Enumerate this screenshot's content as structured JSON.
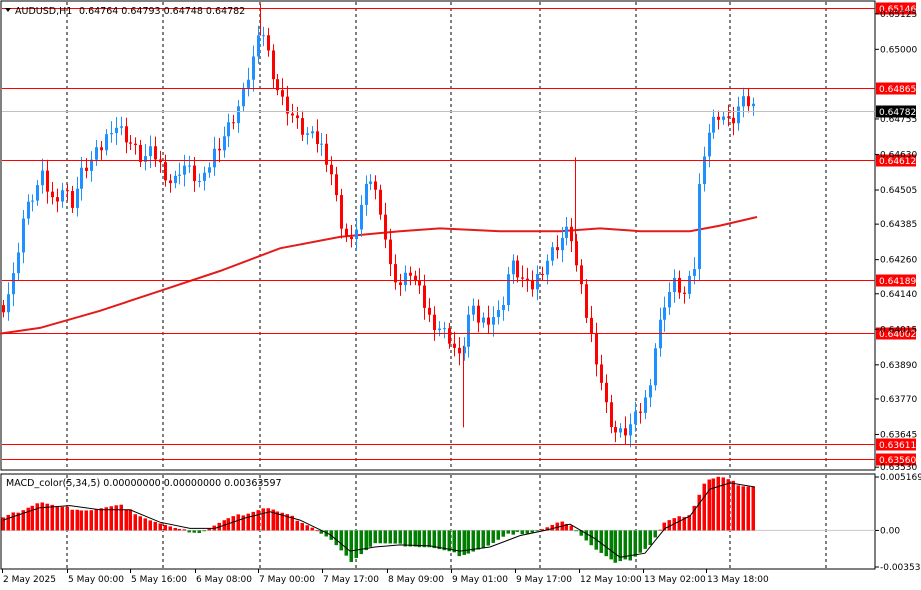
{
  "header": {
    "symbol_label": "AUDUSD,H1",
    "ohlc_text": "0.64764 0.64793 0.64748 0.64782",
    "dropdown_icon": "triangle-down-icon"
  },
  "indicator": {
    "label": "MACD_color(5,34,5) 0.00000000 0.00000000 0.00363597",
    "y_ticks": [
      "0.0051694",
      "0.00",
      "-0.0035380"
    ]
  },
  "colors": {
    "bull": "#1e90ff",
    "bear": "#ff0000",
    "ma": "#e41b1b",
    "level": "#ff0000",
    "current_price_bg": "#000000",
    "macd_pos": "#ff0000",
    "macd_neg": "#008000",
    "signal": "#000000"
  },
  "chart_data": [
    {
      "type": "candlestick",
      "symbol": "AUDUSD",
      "timeframe": "H1",
      "x_labels": [
        "2 May 2025",
        "5 May 00:00",
        "5 May 16:00",
        "6 May 08:00",
        "7 May 00:00",
        "7 May 17:00",
        "8 May 09:00",
        "9 May 01:00",
        "9 May 17:00",
        "12 May 10:00",
        "13 May 02:00",
        "13 May 18:00"
      ],
      "y_ticks": [
        "0.65125",
        "0.65000",
        "0.64755",
        "0.64630",
        "0.64505",
        "0.64385",
        "0.64260",
        "0.64140",
        "0.64015",
        "0.63890",
        "0.63770",
        "0.63645",
        "0.63530"
      ],
      "ylim": [
        0.6352,
        0.6517
      ],
      "level_lines": [
        "0.65146",
        "0.64865",
        "0.64612",
        "0.64189",
        "0.64002",
        "0.63611",
        "0.63560"
      ],
      "current_price": "0.64782",
      "moving_average_points": [
        [
          0,
          0.64
        ],
        [
          40,
          0.6402
        ],
        [
          100,
          0.6408
        ],
        [
          160,
          0.6415
        ],
        [
          220,
          0.6422
        ],
        [
          280,
          0.643
        ],
        [
          340,
          0.6434
        ],
        [
          400,
          0.6436
        ],
        [
          440,
          0.6437
        ],
        [
          500,
          0.6436
        ],
        [
          560,
          0.6436
        ],
        [
          600,
          0.6437
        ],
        [
          640,
          0.6436
        ],
        [
          690,
          0.6436
        ],
        [
          720,
          0.6438
        ],
        [
          757,
          0.6441
        ]
      ],
      "close_path": [
        [
          3,
          0.641
        ],
        [
          12,
          0.6418
        ],
        [
          22,
          0.644
        ],
        [
          32,
          0.6448
        ],
        [
          42,
          0.6455
        ],
        [
          52,
          0.6447
        ],
        [
          62,
          0.6451
        ],
        [
          72,
          0.6446
        ],
        [
          82,
          0.6457
        ],
        [
          92,
          0.6461
        ],
        [
          102,
          0.6466
        ],
        [
          112,
          0.6474
        ],
        [
          122,
          0.6471
        ],
        [
          132,
          0.6466
        ],
        [
          142,
          0.6461
        ],
        [
          152,
          0.6464
        ],
        [
          162,
          0.6458
        ],
        [
          172,
          0.6452
        ],
        [
          182,
          0.646
        ],
        [
          192,
          0.6456
        ],
        [
          202,
          0.6452
        ],
        [
          212,
          0.6463
        ],
        [
          222,
          0.6469
        ],
        [
          232,
          0.6475
        ],
        [
          242,
          0.6483
        ],
        [
          252,
          0.6496
        ],
        [
          262,
          0.6507
        ],
        [
          270,
          0.6495
        ],
        [
          280,
          0.6483
        ],
        [
          290,
          0.6478
        ],
        [
          300,
          0.6472
        ],
        [
          310,
          0.6469
        ],
        [
          320,
          0.6467
        ],
        [
          330,
          0.6459
        ],
        [
          340,
          0.644
        ],
        [
          350,
          0.643
        ],
        [
          360,
          0.6444
        ],
        [
          370,
          0.6455
        ],
        [
          380,
          0.6445
        ],
        [
          390,
          0.6423
        ],
        [
          400,
          0.6417
        ],
        [
          410,
          0.6422
        ],
        [
          420,
          0.6414
        ],
        [
          430,
          0.6405
        ],
        [
          440,
          0.6402
        ],
        [
          450,
          0.6398
        ],
        [
          460,
          0.639
        ],
        [
          470,
          0.6409
        ],
        [
          480,
          0.6404
        ],
        [
          490,
          0.6406
        ],
        [
          500,
          0.6407
        ],
        [
          510,
          0.6425
        ],
        [
          520,
          0.642
        ],
        [
          530,
          0.6415
        ],
        [
          540,
          0.6422
        ],
        [
          550,
          0.6428
        ],
        [
          560,
          0.6433
        ],
        [
          570,
          0.6437
        ],
        [
          577,
          0.6422
        ],
        [
          587,
          0.6405
        ],
        [
          597,
          0.639
        ],
        [
          607,
          0.6372
        ],
        [
          617,
          0.6364
        ],
        [
          627,
          0.6366
        ],
        [
          637,
          0.6371
        ],
        [
          647,
          0.6378
        ],
        [
          655,
          0.6396
        ],
        [
          665,
          0.6412
        ],
        [
          675,
          0.6418
        ],
        [
          685,
          0.6413
        ],
        [
          695,
          0.6425
        ],
        [
          700,
          0.646
        ],
        [
          710,
          0.6473
        ],
        [
          720,
          0.6478
        ],
        [
          730,
          0.6473
        ],
        [
          740,
          0.6481
        ],
        [
          750,
          0.6481
        ],
        [
          757,
          0.6478
        ]
      ],
      "wick_spikes": [
        [
          260,
          0.6516
        ],
        [
          575,
          0.6462
        ],
        [
          463,
          0.6367
        ]
      ]
    },
    {
      "type": "bar",
      "name": "MACD_color(5,34,5)",
      "ylim": [
        -0.003538,
        0.0051694
      ],
      "y_ticks": [
        "0.0051694",
        "0.00",
        "-0.0035380"
      ],
      "histogram_path": [
        [
          3,
          0.0012
        ],
        [
          40,
          0.0028
        ],
        [
          60,
          0.0022
        ],
        [
          90,
          0.002
        ],
        [
          120,
          0.0024
        ],
        [
          150,
          0.001
        ],
        [
          175,
          0.0001
        ],
        [
          200,
          -0.0002
        ],
        [
          230,
          0.0012
        ],
        [
          265,
          0.0022
        ],
        [
          290,
          0.0014
        ],
        [
          310,
          0.0004
        ],
        [
          330,
          -0.0008
        ],
        [
          350,
          -0.003
        ],
        [
          375,
          -0.0012
        ],
        [
          400,
          -0.0014
        ],
        [
          430,
          -0.0016
        ],
        [
          460,
          -0.0024
        ],
        [
          490,
          -0.0014
        ],
        [
          510,
          -0.0003
        ],
        [
          530,
          -0.0002
        ],
        [
          545,
          0.0002
        ],
        [
          560,
          0.0008
        ],
        [
          575,
          0.0002
        ],
        [
          595,
          -0.0018
        ],
        [
          615,
          -0.0032
        ],
        [
          630,
          -0.0028
        ],
        [
          650,
          -0.0014
        ],
        [
          665,
          0.0008
        ],
        [
          690,
          0.0016
        ],
        [
          705,
          0.0048
        ],
        [
          720,
          0.0052
        ],
        [
          740,
          0.0044
        ],
        [
          755,
          0.0042
        ]
      ],
      "signal_path": [
        [
          3,
          0.001
        ],
        [
          40,
          0.0022
        ],
        [
          70,
          0.0024
        ],
        [
          100,
          0.002
        ],
        [
          130,
          0.002
        ],
        [
          160,
          0.0008
        ],
        [
          190,
          0.0002
        ],
        [
          215,
          0.0002
        ],
        [
          245,
          0.0012
        ],
        [
          270,
          0.0018
        ],
        [
          300,
          0.001
        ],
        [
          330,
          -0.0004
        ],
        [
          350,
          -0.002
        ],
        [
          375,
          -0.0016
        ],
        [
          400,
          -0.0014
        ],
        [
          430,
          -0.0015
        ],
        [
          460,
          -0.002
        ],
        [
          490,
          -0.0016
        ],
        [
          520,
          -0.0005
        ],
        [
          545,
          0.0
        ],
        [
          570,
          0.0006
        ],
        [
          595,
          -0.0008
        ],
        [
          620,
          -0.0026
        ],
        [
          645,
          -0.0022
        ],
        [
          665,
          0.0002
        ],
        [
          690,
          0.0014
        ],
        [
          710,
          0.004
        ],
        [
          730,
          0.0046
        ],
        [
          755,
          0.0042
        ]
      ]
    }
  ]
}
